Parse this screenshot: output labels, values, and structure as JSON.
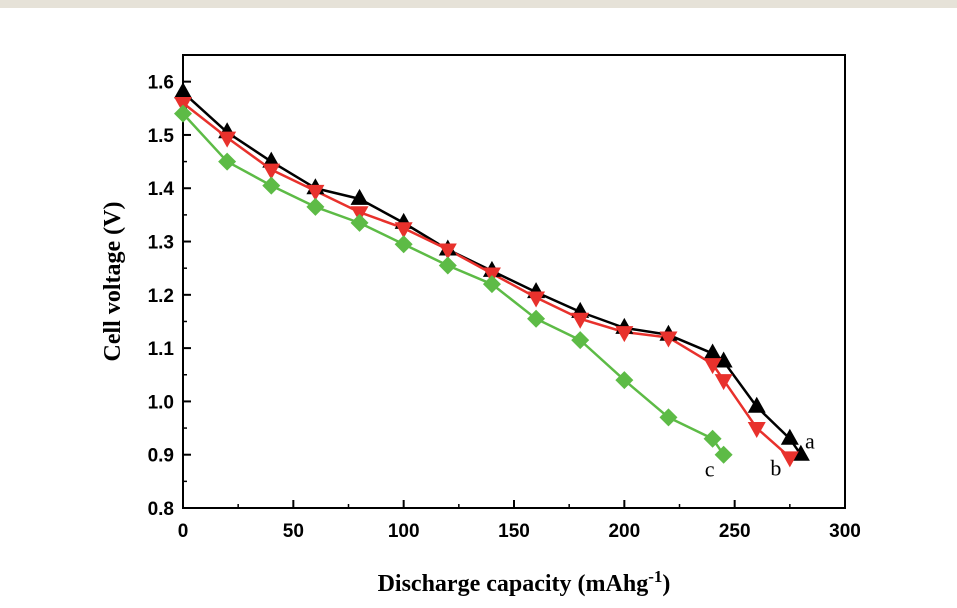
{
  "page": {
    "top_bar_color": "#e6e2d8"
  },
  "chart_data": {
    "type": "line",
    "title": "",
    "xlabel": "Discharge capacity (mAhg",
    "xlabel_sup": "-1",
    "xlabel_end": ")",
    "ylabel": "Cell voltage (V)",
    "xlim": [
      0,
      300
    ],
    "ylim": [
      0.8,
      1.65
    ],
    "xticks": [
      0,
      50,
      100,
      150,
      200,
      250,
      300
    ],
    "yticks": [
      0.8,
      0.9,
      1.0,
      1.1,
      1.2,
      1.3,
      1.4,
      1.5,
      1.6
    ],
    "xtick_labels": [
      "0",
      "50",
      "100",
      "150",
      "200",
      "250",
      "300"
    ],
    "ytick_labels": [
      "0.8",
      "0.9",
      "1.0",
      "1.1",
      "1.2",
      "1.3",
      "1.4",
      "1.5",
      "1.6"
    ],
    "grid": false,
    "legend": "none",
    "series": [
      {
        "label": "a",
        "color": "#000000",
        "marker": "triangle-up",
        "x": [
          0,
          20,
          40,
          60,
          80,
          100,
          120,
          140,
          160,
          180,
          200,
          220,
          240,
          245,
          260,
          275,
          280
        ],
        "y": [
          1.58,
          1.505,
          1.45,
          1.4,
          1.38,
          1.335,
          1.285,
          1.245,
          1.205,
          1.168,
          1.138,
          1.125,
          1.09,
          1.075,
          0.99,
          0.93,
          0.9
        ]
      },
      {
        "label": "b",
        "color": "#e8312c",
        "marker": "triangle-down",
        "x": [
          0,
          20,
          40,
          60,
          80,
          100,
          120,
          140,
          160,
          180,
          200,
          220,
          240,
          245,
          260,
          275
        ],
        "y": [
          1.56,
          1.495,
          1.435,
          1.395,
          1.355,
          1.325,
          1.285,
          1.24,
          1.195,
          1.155,
          1.13,
          1.12,
          1.07,
          1.04,
          0.95,
          0.895
        ]
      },
      {
        "label": "c",
        "color": "#5dbb46",
        "marker": "diamond",
        "x": [
          0,
          20,
          40,
          60,
          80,
          100,
          120,
          140,
          160,
          180,
          200,
          220,
          240,
          245
        ],
        "y": [
          1.54,
          1.45,
          1.405,
          1.365,
          1.335,
          1.295,
          1.255,
          1.22,
          1.155,
          1.115,
          1.04,
          0.97,
          0.93,
          0.9
        ]
      }
    ]
  }
}
